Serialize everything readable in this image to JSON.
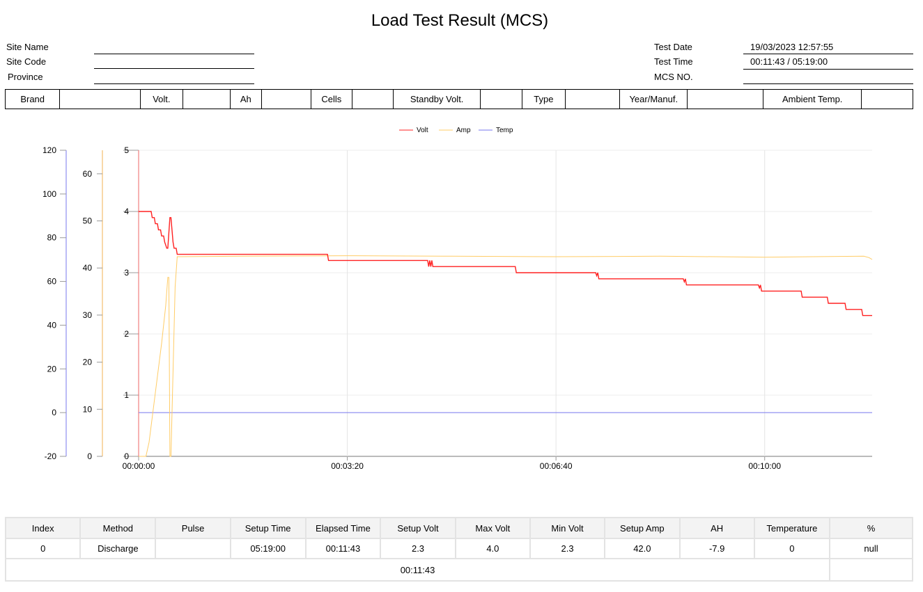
{
  "title": "Load Test Result (MCS)",
  "info_left": [
    {
      "label": "Site Name",
      "value": ""
    },
    {
      "label": "Site Code",
      "value": ""
    },
    {
      "label": "Province",
      "value": ""
    }
  ],
  "info_right": [
    {
      "label": "Test Date",
      "value": "19/03/2023 12:57:55"
    },
    {
      "label": "Test Time",
      "value": "00:11:43 / 05:19:00"
    },
    {
      "label": "MCS NO.",
      "value": ""
    }
  ],
  "spec": [
    "Brand",
    "",
    "Volt.",
    "",
    "Ah",
    "",
    "Cells",
    "",
    "Standby Volt.",
    "",
    "Type",
    "",
    "Year/Manuf.",
    "",
    "Ambient Temp.",
    ""
  ],
  "chart_data": {
    "type": "line",
    "legend": [
      "Volt",
      "Amp",
      "Temp"
    ],
    "legend_position": "top-center",
    "colors": {
      "Volt": "#ff2020",
      "Amp": "#ffcc66",
      "Temp": "#7777ee"
    },
    "x_ticks": [
      "00:00:00",
      "00:03:20",
      "00:06:40",
      "00:10:00"
    ],
    "x_range_seconds": [
      0,
      703
    ],
    "axes": {
      "volt": {
        "range": [
          0,
          5
        ],
        "ticks": [
          0,
          1,
          2,
          3,
          4,
          5
        ]
      },
      "amp": {
        "range": [
          0,
          65
        ],
        "ticks": [
          0,
          10,
          20,
          30,
          40,
          50,
          60
        ]
      },
      "temp": {
        "range": [
          -20,
          120
        ],
        "ticks": [
          -20,
          0,
          20,
          40,
          60,
          80,
          100,
          120
        ]
      }
    },
    "series": [
      {
        "name": "Volt",
        "axis": "volt",
        "points": [
          [
            0,
            4.0
          ],
          [
            12,
            4.0
          ],
          [
            13,
            3.9
          ],
          [
            15,
            3.9
          ],
          [
            16,
            3.8
          ],
          [
            18,
            3.8
          ],
          [
            19,
            3.7
          ],
          [
            21,
            3.7
          ],
          [
            22,
            3.6
          ],
          [
            24,
            3.6
          ],
          [
            25,
            3.5
          ],
          [
            27,
            3.4
          ],
          [
            28,
            3.4
          ],
          [
            30,
            3.9
          ],
          [
            31,
            3.9
          ],
          [
            33,
            3.5
          ],
          [
            34,
            3.4
          ],
          [
            36,
            3.4
          ],
          [
            37,
            3.3
          ],
          [
            181,
            3.3
          ],
          [
            182,
            3.2
          ],
          [
            277,
            3.2
          ],
          [
            278,
            3.1
          ],
          [
            279,
            3.2
          ],
          [
            280,
            3.1
          ],
          [
            281,
            3.2
          ],
          [
            282,
            3.1
          ],
          [
            361,
            3.1
          ],
          [
            362,
            3.0
          ],
          [
            438,
            3.0
          ],
          [
            439,
            2.95
          ],
          [
            440,
            3.0
          ],
          [
            441,
            2.9
          ],
          [
            522,
            2.9
          ],
          [
            523,
            2.85
          ],
          [
            524,
            2.9
          ],
          [
            525,
            2.8
          ],
          [
            594,
            2.8
          ],
          [
            595,
            2.75
          ],
          [
            596,
            2.8
          ],
          [
            597,
            2.7
          ],
          [
            635,
            2.7
          ],
          [
            636,
            2.6
          ],
          [
            660,
            2.6
          ],
          [
            661,
            2.5
          ],
          [
            677,
            2.5
          ],
          [
            678,
            2.4
          ],
          [
            693,
            2.4
          ],
          [
            694,
            2.3
          ],
          [
            703,
            2.3
          ]
        ]
      },
      {
        "name": "Amp",
        "axis": "amp",
        "points": [
          [
            0,
            0
          ],
          [
            7,
            0
          ],
          [
            10,
            3
          ],
          [
            14,
            10
          ],
          [
            18,
            17
          ],
          [
            22,
            24
          ],
          [
            26,
            32
          ],
          [
            28,
            38
          ],
          [
            29,
            38
          ],
          [
            30,
            0
          ],
          [
            31,
            0
          ],
          [
            33,
            18
          ],
          [
            35,
            36
          ],
          [
            37,
            42.4
          ],
          [
            100,
            42.5
          ],
          [
            200,
            42.6
          ],
          [
            300,
            42.5
          ],
          [
            400,
            42.4
          ],
          [
            500,
            42.5
          ],
          [
            600,
            42.3
          ],
          [
            695,
            42.5
          ],
          [
            700,
            42.2
          ],
          [
            703,
            41.8
          ]
        ]
      },
      {
        "name": "Temp",
        "axis": "temp",
        "points": [
          [
            0,
            0
          ],
          [
            703,
            0
          ]
        ]
      }
    ]
  },
  "results": {
    "headers": [
      "Index",
      "Method",
      "Pulse",
      "Setup Time",
      "Elapsed Time",
      "Setup Volt",
      "Max Volt",
      "Min Volt",
      "Setup Amp",
      "AH",
      "Temperature",
      "%"
    ],
    "rows": [
      [
        "0",
        "Discharge",
        "",
        "05:19:00",
        "00:11:43",
        "2.3",
        "4.0",
        "2.3",
        "42.0",
        "-7.9",
        "0",
        "null"
      ]
    ],
    "footer": "00:11:43"
  }
}
